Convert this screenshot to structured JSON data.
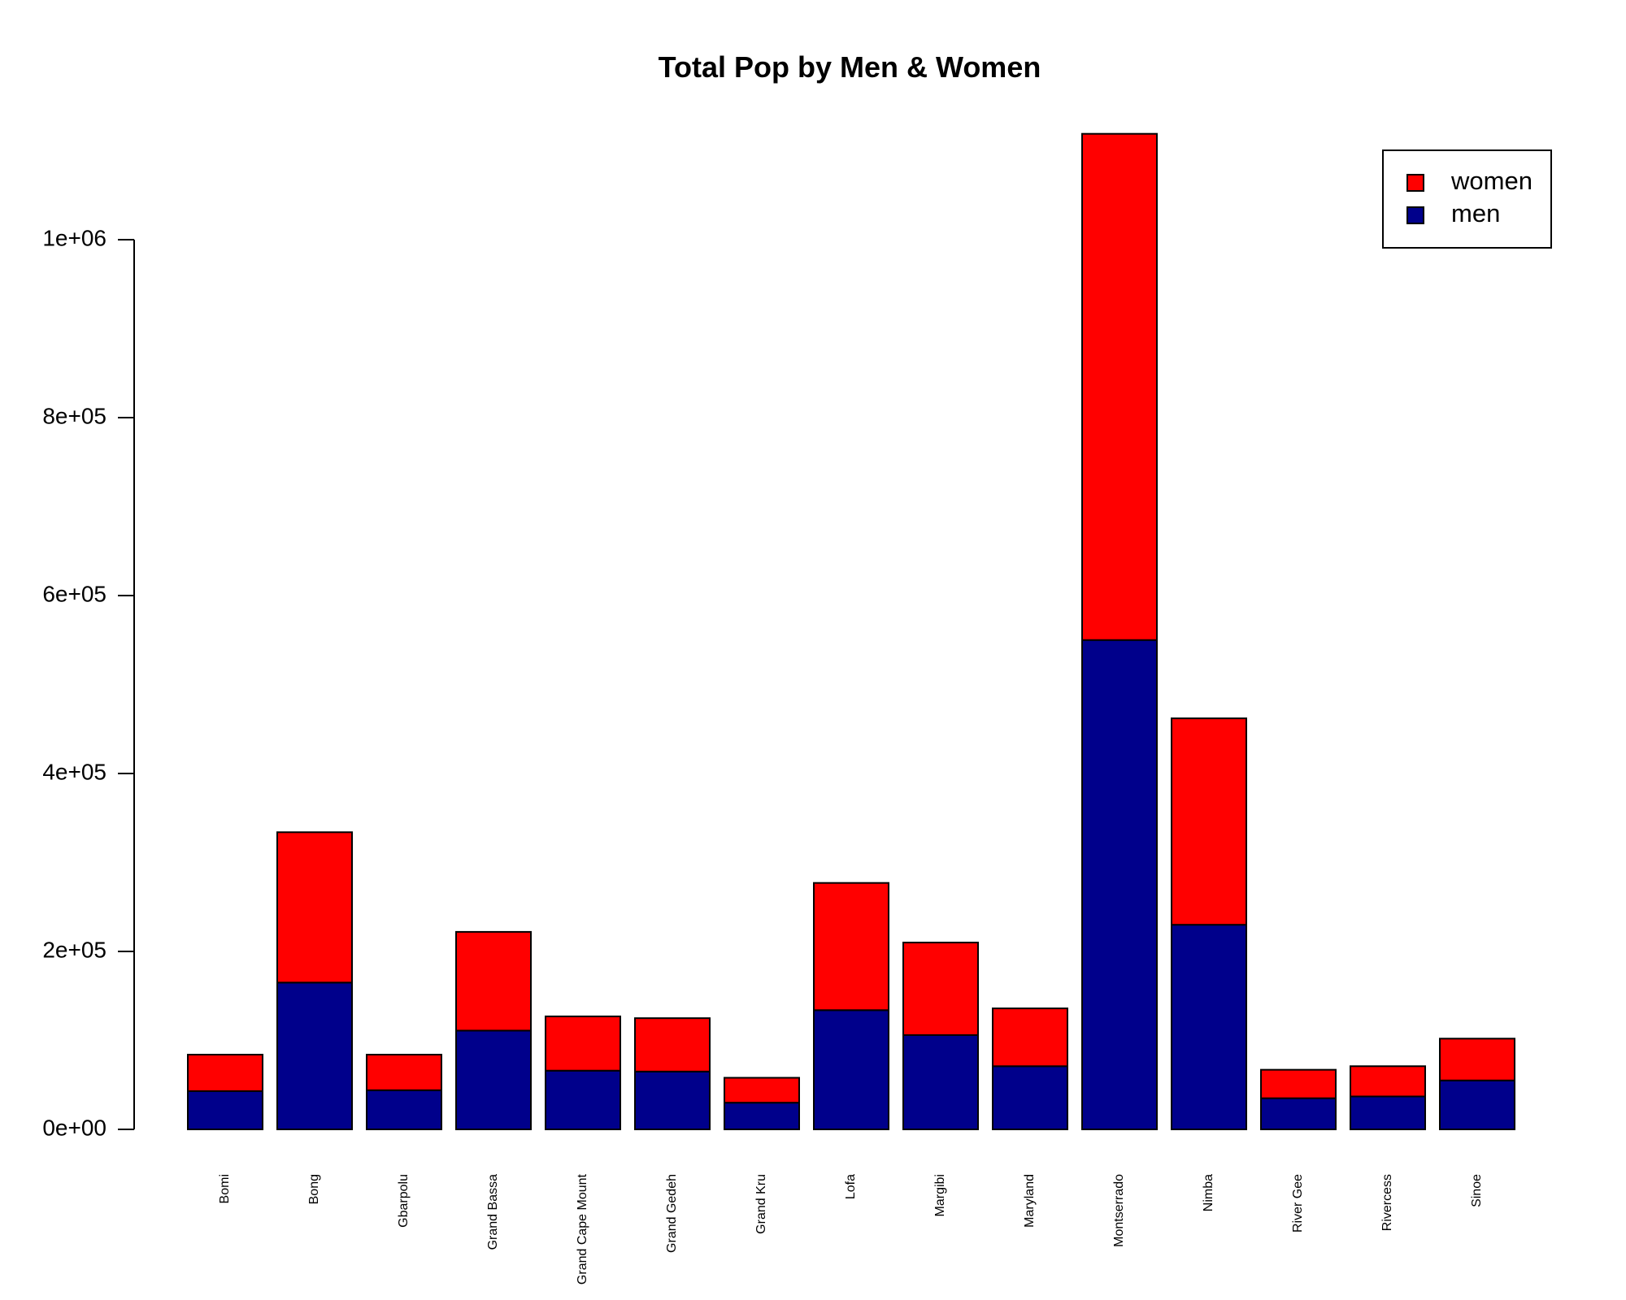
{
  "chart_data": {
    "type": "bar",
    "stacked": true,
    "title": "Total Pop by Men & Women",
    "xlabel": "",
    "ylabel": "",
    "categories": [
      "Bomi",
      "Bong",
      "Gbarpolu",
      "Grand Bassa",
      "Grand Cape Mount",
      "Grand Gedeh",
      "Grand Kru",
      "Lofa",
      "Margibi",
      "Maryland",
      "Montserrado",
      "Nimba",
      "River Gee",
      "Rivercess",
      "Sinoe"
    ],
    "series": [
      {
        "name": "men",
        "color": "#00008B",
        "values": [
          43000,
          165000,
          44000,
          111000,
          66000,
          65000,
          30000,
          134000,
          106000,
          71000,
          550000,
          230000,
          35000,
          37000,
          55000
        ]
      },
      {
        "name": "women",
        "color": "#FF0000",
        "values": [
          41000,
          169000,
          40000,
          111000,
          61000,
          60000,
          28000,
          143000,
          104000,
          65000,
          569000,
          232000,
          32000,
          34000,
          47000
        ]
      }
    ],
    "ylim": [
      0,
      1120000
    ],
    "yticks": [
      0,
      200000,
      400000,
      600000,
      800000,
      1000000
    ],
    "ytick_labels": [
      "0e+00",
      "2e+05",
      "4e+05",
      "6e+05",
      "8e+05",
      "1e+06"
    ],
    "legend": {
      "position": "top-right",
      "entries": [
        "women",
        "men"
      ]
    },
    "grid": false
  }
}
